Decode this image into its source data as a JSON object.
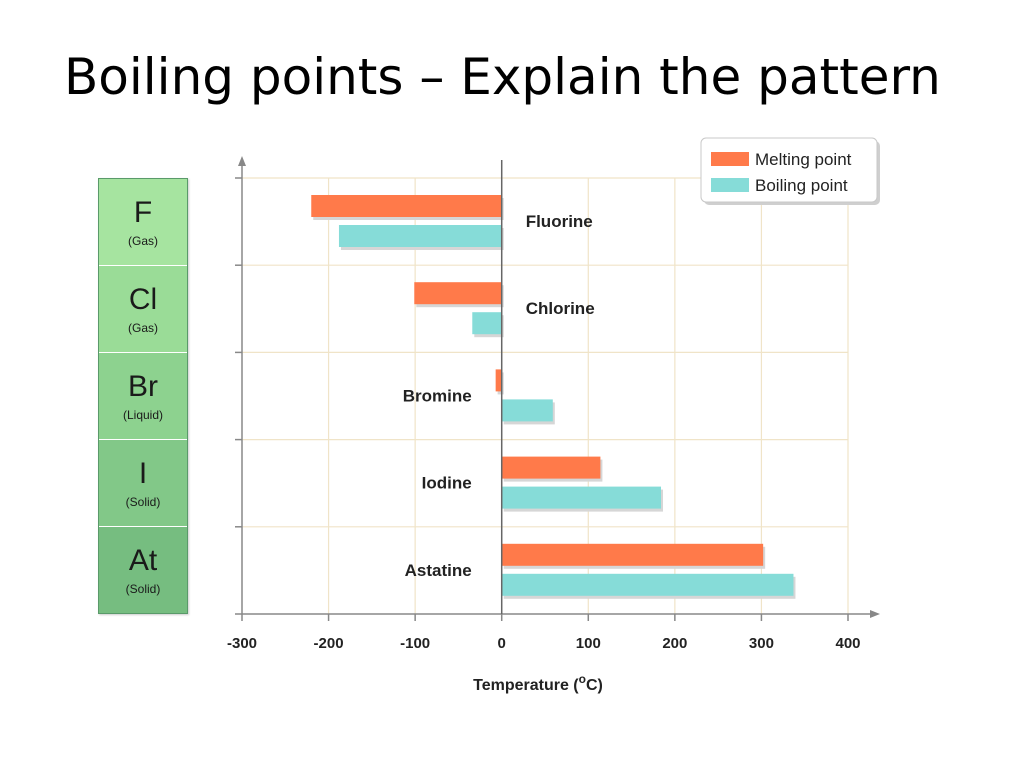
{
  "slide": {
    "title": "Boiling points – Explain the pattern"
  },
  "elements_panel": [
    {
      "symbol": "F",
      "state": "(Gas)",
      "color": "#a6e4a0"
    },
    {
      "symbol": "Cl",
      "state": "(Gas)",
      "color": "#9adc97"
    },
    {
      "symbol": "Br",
      "state": "(Liquid)",
      "color": "#8dd28f"
    },
    {
      "symbol": "I",
      "state": "(Solid)",
      "color": "#82c888"
    },
    {
      "symbol": "At",
      "state": "(Solid)",
      "color": "#76bd80"
    }
  ],
  "chart_data": {
    "type": "bar",
    "orientation": "horizontal",
    "categories": [
      "Fluorine",
      "Chlorine",
      "Bromine",
      "Iodine",
      "Astatine"
    ],
    "series": [
      {
        "name": "Melting point",
        "values": [
          -220,
          -101,
          -7,
          114,
          302
        ],
        "color": "#ff7a4a"
      },
      {
        "name": "Boiling point",
        "values": [
          -188,
          -34,
          59,
          184,
          337
        ],
        "color": "#86dcd8"
      }
    ],
    "xlabel": "Temperature (",
    "xlabel_sup": "o",
    "xlabel_suffix": "C)",
    "xlim": [
      -300,
      400
    ],
    "xticks": [
      -300,
      -200,
      -100,
      0,
      100,
      200,
      300,
      400
    ],
    "grid": true,
    "legend": "top-right"
  }
}
